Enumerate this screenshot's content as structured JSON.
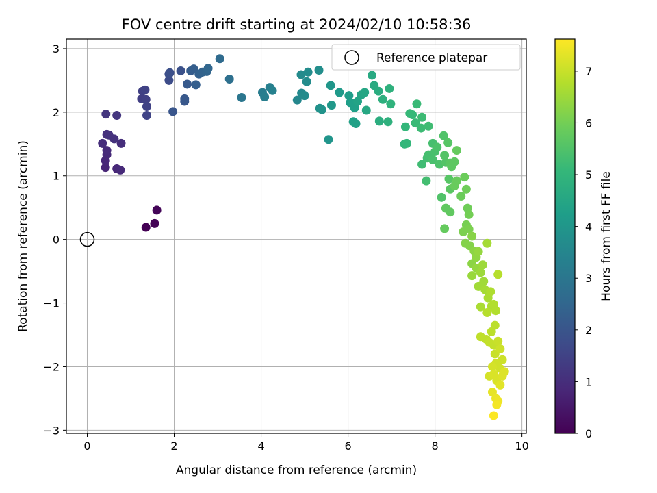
{
  "chart_data": {
    "type": "scatter",
    "title": "FOV centre drift starting at 2024/02/10 10:58:36",
    "xlabel": "Angular distance from reference (arcmin)",
    "ylabel": "Rotation from reference (arcmin)",
    "xlim": [
      -0.48,
      10.1
    ],
    "ylim": [
      -3.05,
      3.15
    ],
    "xticks": [
      0,
      2,
      4,
      6,
      8,
      10
    ],
    "xtick_labels": [
      "0",
      "2",
      "4",
      "6",
      "8",
      "10"
    ],
    "yticks": [
      -3,
      -2,
      -1,
      0,
      1,
      2,
      3
    ],
    "ytick_labels": [
      "−3",
      "−2",
      "−1",
      "0",
      "1",
      "2",
      "3"
    ],
    "grid": true,
    "colormap": "viridis",
    "colorbar": {
      "label": "Hours from first FF file",
      "range": [
        0,
        7.62
      ],
      "ticks": [
        0,
        1,
        2,
        3,
        4,
        5,
        6,
        7
      ],
      "tick_labels": [
        "0",
        "1",
        "2",
        "3",
        "4",
        "5",
        "6",
        "7"
      ]
    },
    "legend": {
      "position": "top-right",
      "entries": [
        {
          "label": "Reference platepar",
          "marker": "open-circle"
        }
      ]
    },
    "reference_point": {
      "x": 0,
      "y": 0
    },
    "points": [
      [
        1.35,
        0.19,
        0.0
      ],
      [
        1.55,
        0.25,
        0.05
      ],
      [
        1.6,
        0.46,
        0.1
      ],
      [
        0.42,
        1.13,
        0.8
      ],
      [
        0.42,
        1.24,
        0.85
      ],
      [
        0.68,
        1.11,
        0.85
      ],
      [
        0.76,
        1.09,
        0.9
      ],
      [
        0.45,
        1.33,
        0.9
      ],
      [
        0.45,
        1.4,
        0.95
      ],
      [
        0.35,
        1.51,
        1.0
      ],
      [
        0.78,
        1.51,
        1.0
      ],
      [
        0.45,
        1.65,
        1.05
      ],
      [
        0.5,
        1.64,
        1.1
      ],
      [
        0.62,
        1.58,
        1.1
      ],
      [
        0.43,
        1.97,
        1.2
      ],
      [
        0.68,
        1.95,
        1.2
      ],
      [
        1.25,
        2.21,
        1.4
      ],
      [
        1.35,
        2.2,
        1.45
      ],
      [
        1.27,
        2.33,
        1.45
      ],
      [
        1.33,
        2.35,
        1.5
      ],
      [
        1.37,
        2.09,
        1.5
      ],
      [
        1.37,
        1.95,
        1.55
      ],
      [
        1.88,
        2.5,
        1.75
      ],
      [
        1.88,
        2.6,
        1.8
      ],
      [
        1.9,
        2.62,
        1.85
      ],
      [
        2.15,
        2.65,
        1.9
      ],
      [
        1.97,
        2.01,
        2.0
      ],
      [
        2.24,
        2.17,
        2.05
      ],
      [
        2.24,
        2.21,
        2.1
      ],
      [
        2.3,
        2.44,
        2.15
      ],
      [
        2.38,
        2.65,
        2.2
      ],
      [
        2.45,
        2.68,
        2.25
      ],
      [
        2.5,
        2.43,
        2.3
      ],
      [
        2.57,
        2.6,
        2.35
      ],
      [
        2.65,
        2.63,
        2.4
      ],
      [
        2.75,
        2.64,
        2.45
      ],
      [
        2.78,
        2.69,
        2.5
      ],
      [
        3.05,
        2.84,
        2.65
      ],
      [
        3.27,
        2.52,
        2.8
      ],
      [
        3.55,
        2.23,
        3.0
      ],
      [
        4.03,
        2.31,
        3.2
      ],
      [
        4.08,
        2.24,
        3.25
      ],
      [
        4.2,
        2.39,
        3.3
      ],
      [
        4.26,
        2.34,
        3.35
      ],
      [
        4.83,
        2.19,
        3.55
      ],
      [
        4.93,
        2.3,
        3.6
      ],
      [
        4.92,
        2.59,
        3.65
      ],
      [
        5.0,
        2.26,
        3.65
      ],
      [
        5.05,
        2.48,
        3.7
      ],
      [
        5.08,
        2.63,
        3.7
      ],
      [
        5.33,
        2.66,
        3.75
      ],
      [
        5.35,
        2.06,
        3.85
      ],
      [
        5.4,
        2.04,
        3.9
      ],
      [
        5.55,
        1.57,
        3.95
      ],
      [
        5.6,
        2.42,
        4.0
      ],
      [
        5.62,
        2.11,
        4.05
      ],
      [
        5.8,
        2.31,
        4.1
      ],
      [
        6.02,
        2.26,
        4.2
      ],
      [
        6.05,
        2.15,
        4.25
      ],
      [
        6.1,
        2.14,
        4.3
      ],
      [
        6.15,
        2.07,
        4.3
      ],
      [
        6.12,
        1.85,
        4.35
      ],
      [
        6.18,
        1.82,
        4.35
      ],
      [
        6.22,
        2.17,
        4.4
      ],
      [
        6.3,
        2.27,
        4.45
      ],
      [
        6.38,
        2.31,
        4.5
      ],
      [
        6.42,
        2.03,
        4.55
      ],
      [
        6.55,
        2.58,
        4.6
      ],
      [
        6.6,
        2.42,
        4.65
      ],
      [
        6.7,
        2.33,
        4.7
      ],
      [
        6.72,
        1.86,
        4.75
      ],
      [
        6.8,
        2.2,
        4.8
      ],
      [
        6.92,
        1.85,
        4.85
      ],
      [
        6.95,
        2.37,
        4.85
      ],
      [
        6.98,
        2.13,
        4.9
      ],
      [
        7.3,
        1.5,
        5.0
      ],
      [
        7.35,
        1.51,
        5.05
      ],
      [
        7.32,
        1.77,
        5.05
      ],
      [
        7.42,
        1.98,
        5.1
      ],
      [
        7.48,
        1.96,
        5.1
      ],
      [
        7.58,
        2.13,
        5.15
      ],
      [
        7.55,
        1.83,
        5.15
      ],
      [
        7.68,
        1.75,
        5.2
      ],
      [
        7.7,
        1.92,
        5.2
      ],
      [
        7.85,
        1.78,
        5.25
      ],
      [
        7.7,
        1.18,
        5.25
      ],
      [
        7.82,
        1.28,
        5.3
      ],
      [
        7.8,
        0.92,
        5.3
      ],
      [
        7.85,
        1.33,
        5.35
      ],
      [
        7.95,
        1.51,
        5.35
      ],
      [
        8.0,
        1.38,
        5.4
      ],
      [
        7.95,
        1.25,
        5.4
      ],
      [
        8.05,
        1.45,
        5.45
      ],
      [
        8.1,
        1.18,
        5.45
      ],
      [
        8.15,
        0.66,
        5.5
      ],
      [
        8.2,
        1.63,
        5.5
      ],
      [
        8.22,
        1.32,
        5.55
      ],
      [
        8.25,
        1.21,
        5.55
      ],
      [
        8.3,
        1.52,
        5.6
      ],
      [
        8.32,
        0.95,
        5.6
      ],
      [
        8.35,
        1.2,
        5.65
      ],
      [
        8.35,
        0.79,
        5.65
      ],
      [
        8.38,
        1.14,
        5.7
      ],
      [
        8.45,
        1.22,
        5.7
      ],
      [
        8.25,
        0.49,
        5.75
      ],
      [
        8.35,
        0.43,
        5.75
      ],
      [
        8.22,
        0.17,
        5.8
      ],
      [
        8.5,
        1.4,
        5.8
      ],
      [
        8.5,
        0.92,
        5.85
      ],
      [
        8.45,
        0.84,
        5.85
      ],
      [
        8.6,
        0.68,
        5.9
      ],
      [
        8.68,
        0.98,
        5.9
      ],
      [
        8.72,
        0.79,
        5.95
      ],
      [
        8.75,
        0.49,
        5.95
      ],
      [
        8.78,
        0.39,
        6.0
      ],
      [
        8.72,
        0.23,
        6.05
      ],
      [
        8.65,
        0.12,
        6.1
      ],
      [
        8.78,
        0.16,
        6.1
      ],
      [
        8.7,
        -0.06,
        6.2
      ],
      [
        8.8,
        -0.1,
        6.2
      ],
      [
        8.85,
        0.05,
        6.25
      ],
      [
        8.9,
        -0.18,
        6.3
      ],
      [
        8.85,
        -0.38,
        6.3
      ],
      [
        8.95,
        -0.28,
        6.35
      ],
      [
        9.0,
        -0.19,
        6.4
      ],
      [
        8.95,
        -0.45,
        6.4
      ],
      [
        8.85,
        -0.57,
        6.45
      ],
      [
        9.05,
        -0.52,
        6.5
      ],
      [
        9.1,
        -0.4,
        6.5
      ],
      [
        9.12,
        -0.66,
        6.55
      ],
      [
        9.0,
        -0.74,
        6.55
      ],
      [
        9.2,
        -0.06,
        6.6
      ],
      [
        9.15,
        -0.79,
        6.6
      ],
      [
        9.22,
        -0.92,
        6.65
      ],
      [
        9.05,
        -1.06,
        6.65
      ],
      [
        9.28,
        -0.82,
        6.7
      ],
      [
        9.3,
        -1.05,
        6.7
      ],
      [
        9.35,
        -1.02,
        6.75
      ],
      [
        9.4,
        -1.12,
        6.75
      ],
      [
        9.45,
        -0.55,
        6.8
      ],
      [
        9.2,
        -1.15,
        6.8
      ],
      [
        9.38,
        -1.35,
        6.85
      ],
      [
        9.3,
        -1.45,
        6.85
      ],
      [
        9.05,
        -1.53,
        6.9
      ],
      [
        9.18,
        -1.57,
        6.9
      ],
      [
        9.25,
        -1.62,
        6.95
      ],
      [
        9.35,
        -1.66,
        6.95
      ],
      [
        9.45,
        -1.6,
        7.0
      ],
      [
        9.38,
        -1.8,
        7.0
      ],
      [
        9.5,
        -1.72,
        7.05
      ],
      [
        9.55,
        -1.89,
        7.05
      ],
      [
        9.4,
        -1.95,
        7.1
      ],
      [
        9.5,
        -2.03,
        7.1
      ],
      [
        9.32,
        -2.0,
        7.15
      ],
      [
        9.25,
        -2.15,
        7.15
      ],
      [
        9.35,
        -2.12,
        7.2
      ],
      [
        9.42,
        -2.22,
        7.2
      ],
      [
        9.55,
        -2.15,
        7.25
      ],
      [
        9.6,
        -2.08,
        7.25
      ],
      [
        9.5,
        -2.29,
        7.3
      ],
      [
        9.32,
        -2.4,
        7.35
      ],
      [
        9.4,
        -2.5,
        7.4
      ],
      [
        9.45,
        -2.54,
        7.45
      ],
      [
        9.42,
        -2.6,
        7.5
      ],
      [
        9.35,
        -2.77,
        7.6
      ]
    ]
  }
}
